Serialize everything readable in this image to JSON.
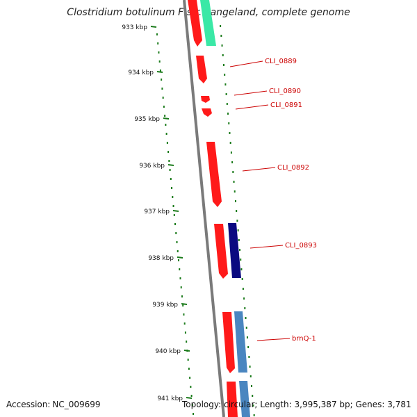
{
  "title": "Clostridium botulinum F str. Langeland, complete genome",
  "footer": {
    "accession_label": "Accession:",
    "accession": "NC_009699",
    "topology": "Topology: circular; Length: 3,995,387 bp; Genes: 3,781"
  },
  "ruler": [
    {
      "label": "933 kbp"
    },
    {
      "label": "934 kbp"
    },
    {
      "label": "935 kbp"
    },
    {
      "label": "936 kbp"
    },
    {
      "label": "937 kbp"
    },
    {
      "label": "938 kbp"
    },
    {
      "label": "939 kbp"
    },
    {
      "label": "940 kbp"
    },
    {
      "label": "941 kbp"
    }
  ],
  "gene_labels": [
    "CLI_0889",
    "CLI_0890",
    "CLI_0891",
    "CLI_0892",
    "CLI_0893",
    "brnQ-1"
  ],
  "colors": {
    "cds": "#ff1a1a",
    "track_green": "#33e0a0",
    "track_navy": "#0a0a80",
    "track_steelblue": "#4a86c0",
    "backbone": "#808080",
    "ruler": "#1a7a1a",
    "label": "#cc0000"
  }
}
